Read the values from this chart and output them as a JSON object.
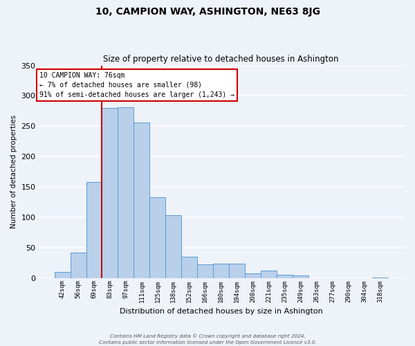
{
  "title": "10, CAMPION WAY, ASHINGTON, NE63 8JG",
  "subtitle": "Size of property relative to detached houses in Ashington",
  "xlabel": "Distribution of detached houses by size in Ashington",
  "ylabel": "Number of detached properties",
  "bar_labels": [
    "42sqm",
    "56sqm",
    "69sqm",
    "83sqm",
    "97sqm",
    "111sqm",
    "125sqm",
    "138sqm",
    "152sqm",
    "166sqm",
    "180sqm",
    "194sqm",
    "208sqm",
    "221sqm",
    "235sqm",
    "249sqm",
    "263sqm",
    "277sqm",
    "290sqm",
    "304sqm",
    "318sqm"
  ],
  "bar_values": [
    10,
    42,
    158,
    280,
    281,
    256,
    133,
    103,
    35,
    22,
    23,
    23,
    7,
    12,
    5,
    4,
    0,
    0,
    0,
    0,
    1
  ],
  "bar_color": "#b8d0ea",
  "bar_edge_color": "#5b9bd5",
  "vline_color": "#cc0000",
  "ylim": [
    0,
    350
  ],
  "yticks": [
    0,
    50,
    100,
    150,
    200,
    250,
    300,
    350
  ],
  "annotation_text": "10 CAMPION WAY: 76sqm\n← 7% of detached houses are smaller (98)\n91% of semi-detached houses are larger (1,243) →",
  "annotation_box_color": "#ffffff",
  "annotation_box_edgecolor": "#cc0000",
  "footer_line1": "Contains HM Land Registry data © Crown copyright and database right 2024.",
  "footer_line2": "Contains public sector information licensed under the Open Government Licence v3.0.",
  "background_color": "#eef2f9",
  "grid_color": "#ffffff",
  "vline_bar_index": 2
}
